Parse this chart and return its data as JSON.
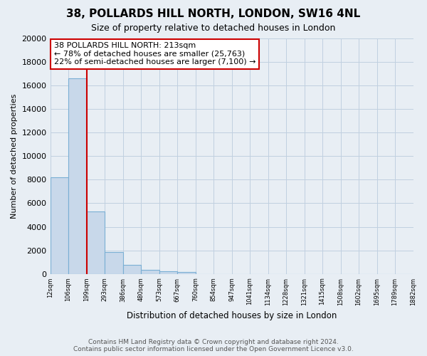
{
  "title": "38, POLLARDS HILL NORTH, LONDON, SW16 4NL",
  "subtitle": "Size of property relative to detached houses in London",
  "xlabel": "Distribution of detached houses by size in London",
  "ylabel": "Number of detached properties",
  "bar_values": [
    8200,
    16600,
    5300,
    1850,
    780,
    330,
    220,
    170,
    0,
    0,
    0,
    0,
    0,
    0,
    0,
    0,
    0,
    0,
    0,
    0
  ],
  "bar_labels": [
    "12sqm",
    "106sqm",
    "199sqm",
    "293sqm",
    "386sqm",
    "480sqm",
    "573sqm",
    "667sqm",
    "760sqm",
    "854sqm",
    "947sqm",
    "1041sqm",
    "1134sqm",
    "1228sqm",
    "1321sqm",
    "1415sqm",
    "1508sqm",
    "1602sqm",
    "1695sqm",
    "1789sqm",
    "1882sqm"
  ],
  "bar_color": "#c8d8ea",
  "bar_edge_color": "#7aafd4",
  "annotation_box_text": "38 POLLARDS HILL NORTH: 213sqm\n← 78% of detached houses are smaller (25,763)\n22% of semi-detached houses are larger (7,100) →",
  "annotation_box_color": "white",
  "annotation_box_edge_color": "#cc0000",
  "vline_color": "#cc0000",
  "ylim": [
    0,
    20000
  ],
  "yticks": [
    0,
    2000,
    4000,
    6000,
    8000,
    10000,
    12000,
    14000,
    16000,
    18000,
    20000
  ],
  "grid_color": "#c0d0e0",
  "footer_line1": "Contains HM Land Registry data © Crown copyright and database right 2024.",
  "footer_line2": "Contains public sector information licensed under the Open Government Licence v3.0.",
  "bg_color": "#e8eef4"
}
